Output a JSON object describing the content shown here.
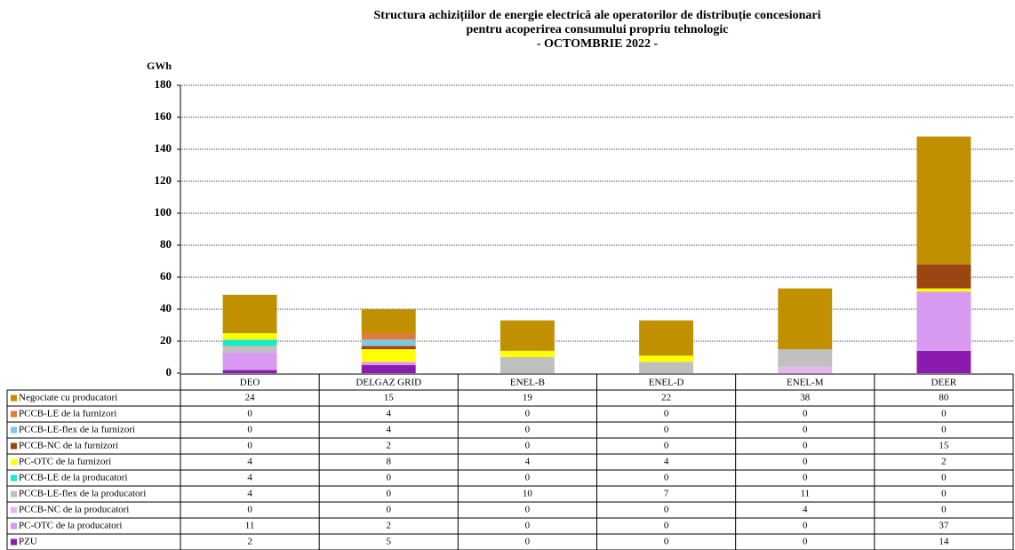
{
  "chart_data": {
    "type": "stacked_bar",
    "title": "Structura achizițiilor de energie electrică ale operatorilor de distribuție concesionari",
    "subtitle": "pentru acoperirea consumului propriu tehnologic",
    "period": "- OCTOMBRIE 2022 -",
    "y_label": "GWh",
    "categories": [
      "DEO",
      "DELGAZ GRID",
      "ENEL-B",
      "ENEL-D",
      "ENEL-M",
      "DEER"
    ],
    "ylim": [
      0,
      180
    ],
    "yticks": [
      0,
      20,
      40,
      60,
      80,
      100,
      120,
      140,
      160,
      180
    ],
    "grid": true,
    "series": [
      {
        "name": "Negociate cu producatori",
        "color": "#c09000",
        "values": [
          24,
          15,
          19,
          22,
          38,
          80
        ]
      },
      {
        "name": "PCCB-LE de la furnizori",
        "color": "#e07b39",
        "values": [
          0,
          4,
          0,
          0,
          0,
          0
        ]
      },
      {
        "name": "PCCB-LE-flex de la furnizori",
        "color": "#7ec8e3",
        "values": [
          0,
          4,
          0,
          0,
          0,
          0
        ]
      },
      {
        "name": "PCCB-NC de la furnizori",
        "color": "#9b4513",
        "values": [
          0,
          2,
          0,
          0,
          0,
          15
        ]
      },
      {
        "name": "PC-OTC de la furnizori",
        "color": "#ffff00",
        "values": [
          4,
          8,
          4,
          4,
          0,
          2
        ]
      },
      {
        "name": "PCCB-LE de la producatori",
        "color": "#1de9c8",
        "values": [
          4,
          0,
          0,
          0,
          0,
          0
        ]
      },
      {
        "name": "PCCB-LE-flex de la producatori",
        "color": "#c0c0c0",
        "values": [
          4,
          0,
          10,
          7,
          11,
          0
        ]
      },
      {
        "name": "PCCB-NC de la producatori",
        "color": "#e6b8f0",
        "values": [
          0,
          0,
          0,
          0,
          4,
          0
        ]
      },
      {
        "name": "PC-OTC de la producatori",
        "color": "#d899f0",
        "values": [
          11,
          2,
          0,
          0,
          0,
          37
        ]
      },
      {
        "name": "PZU",
        "color": "#8b1bb0",
        "values": [
          2,
          5,
          0,
          0,
          0,
          14
        ]
      }
    ]
  }
}
